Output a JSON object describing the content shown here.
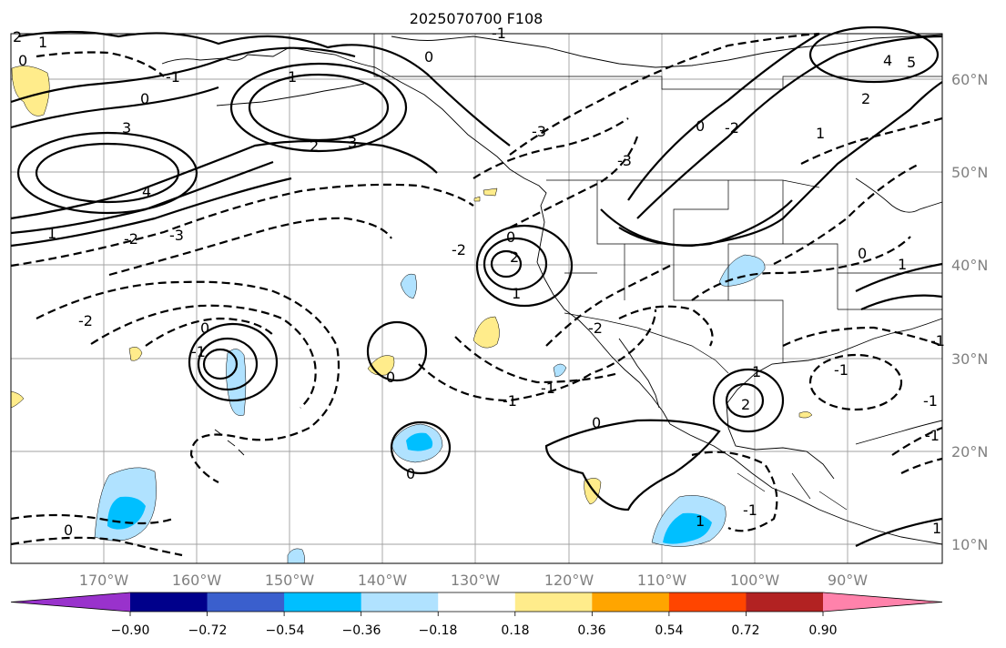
{
  "map": {
    "title": "2025070700 F108",
    "lon_labels": [
      "170°W",
      "160°W",
      "150°W",
      "140°W",
      "130°W",
      "120°W",
      "110°W",
      "100°W",
      "90°W"
    ],
    "lat_labels": [
      "60°N",
      "50°N",
      "40°N",
      "30°N",
      "20°N",
      "10°N"
    ],
    "contour_labels": [
      "0",
      "1",
      "3",
      "4",
      "0",
      "-2",
      "3",
      "2",
      "-1",
      "0",
      "1",
      "-3",
      "-2",
      "-3",
      "-1",
      "1",
      "4",
      "5",
      "2",
      "0",
      "1",
      "-2",
      "1",
      "2",
      "0",
      "-2",
      "-3",
      "-2",
      "0",
      "-1",
      "0",
      "2",
      "1",
      "0",
      "-1",
      "1",
      "-1",
      "0",
      "-1",
      "0",
      "1",
      "-1",
      "0",
      "-1",
      "1",
      "-1",
      "2",
      "-1"
    ],
    "grid_color": "#a0a0a0",
    "line_color": "#000000"
  },
  "colorbar": {
    "colors": [
      "#9932cc",
      "#00008b",
      "#3a5fcd",
      "#00bfff",
      "#b0e2ff",
      "#ffffff",
      "#ffec8b",
      "#ffa500",
      "#ff4500",
      "#b22222",
      "#ff82ab"
    ],
    "tick_labels": [
      "−0.90",
      "−0.72",
      "−0.54",
      "−0.36",
      "−0.18",
      "0.18",
      "0.36",
      "0.54",
      "0.72",
      "0.90"
    ],
    "extend": "both"
  }
}
